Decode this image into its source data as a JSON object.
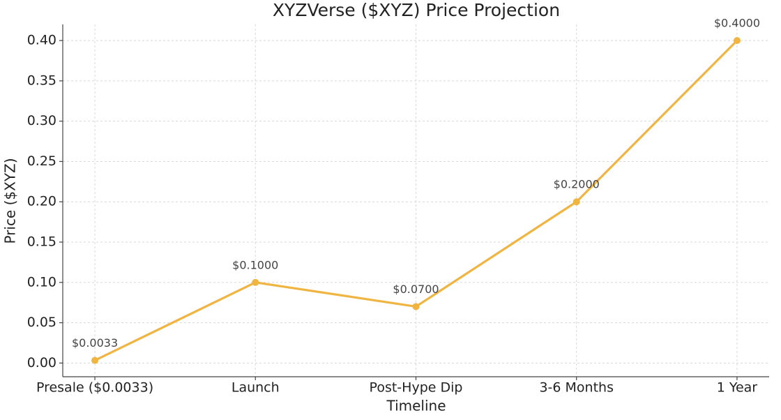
{
  "chart_data": {
    "type": "line",
    "title": "XYZVerse ($XYZ) Price Projection",
    "x_label": "Timeline",
    "y_label": "Price ($XYZ)",
    "categories": [
      "Presale ($0.0033)",
      "Launch",
      "Post-Hype Dip",
      "3-6 Months",
      "1 Year"
    ],
    "values": [
      0.0033,
      0.1,
      0.07,
      0.2,
      0.4
    ],
    "value_labels": [
      "$0.0033",
      "$0.1000",
      "$0.0700",
      "$0.2000",
      "$0.4000"
    ],
    "color": "#f0b441",
    "ylim": [
      -0.017,
      0.42
    ],
    "yticks": [
      {
        "value": 0,
        "label": "0.00"
      },
      {
        "value": 0.05,
        "label": "0.05"
      },
      {
        "value": 0.1,
        "label": "0.10"
      },
      {
        "value": 0.15,
        "label": "0.15"
      },
      {
        "value": 0.2,
        "label": "0.20"
      },
      {
        "value": 0.25,
        "label": "0.25"
      },
      {
        "value": 0.3,
        "label": "0.30"
      },
      {
        "value": 0.35,
        "label": "0.35"
      },
      {
        "value": 0.4,
        "label": "0.40"
      }
    ],
    "grid": true
  }
}
